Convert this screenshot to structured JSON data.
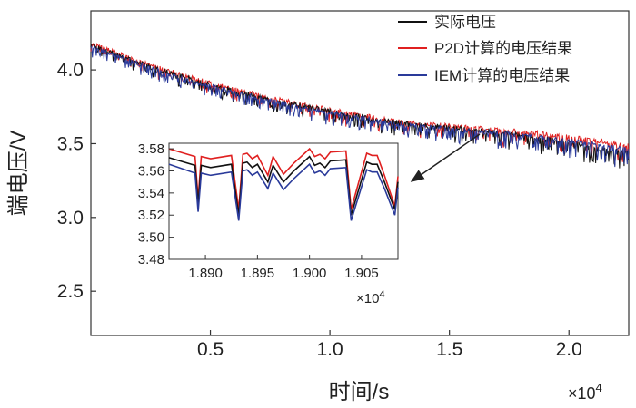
{
  "chart_data": {
    "type": "line",
    "title": "",
    "xlabel": "时间/s",
    "ylabel": "端电压/V",
    "x_multiplier_label": "×10",
    "x_multiplier_exp": "4",
    "xlim": [
      0,
      2.25
    ],
    "ylim": [
      2.2,
      4.4
    ],
    "xticks": [
      0.5,
      1.0,
      1.5,
      2.0
    ],
    "xtick_labels": [
      "0.5",
      "1.0",
      "1.5",
      "2.0"
    ],
    "yticks": [
      2.5,
      3.0,
      3.5,
      4.0
    ],
    "ytick_labels": [
      "2.5",
      "3.0",
      "3.5",
      "4.0"
    ],
    "legend_position": "top-right",
    "series": [
      {
        "name": "实际电压",
        "color": "#111111",
        "x": [
          0.0,
          0.25,
          0.5,
          0.75,
          1.0,
          1.25,
          1.5,
          1.75,
          2.0,
          2.25
        ],
        "y": [
          4.17,
          4.02,
          3.9,
          3.8,
          3.72,
          3.65,
          3.61,
          3.57,
          3.51,
          3.44
        ]
      },
      {
        "name": "P2D计算的电压结果",
        "color": "#e02020",
        "x": [
          0.0,
          0.25,
          0.5,
          0.75,
          1.0,
          1.25,
          1.5,
          1.75,
          2.0,
          2.25
        ],
        "y": [
          4.18,
          4.03,
          3.91,
          3.81,
          3.73,
          3.66,
          3.62,
          3.59,
          3.55,
          3.49
        ]
      },
      {
        "name": "IEM计算的电压结果",
        "color": "#2a3a9a",
        "x": [
          0.0,
          0.25,
          0.5,
          0.75,
          1.0,
          1.25,
          1.5,
          1.75,
          2.0,
          2.25
        ],
        "y": [
          4.16,
          4.01,
          3.89,
          3.79,
          3.71,
          3.64,
          3.6,
          3.57,
          3.52,
          3.46
        ]
      }
    ],
    "inset": {
      "xlim": [
        1.8865,
        1.9085
      ],
      "ylim": [
        3.48,
        3.585
      ],
      "xticks": [
        1.89,
        1.895,
        1.9,
        1.905
      ],
      "xtick_labels": [
        "1.890",
        "1.895",
        "1.900",
        "1.905"
      ],
      "yticks": [
        3.48,
        3.5,
        3.52,
        3.54,
        3.56,
        3.58
      ],
      "ytick_labels": [
        "3.48",
        "3.50",
        "3.52",
        "3.54",
        "3.56",
        "3.58"
      ],
      "x_multiplier_label": "×10",
      "x_multiplier_exp": "4",
      "series": [
        {
          "name": "实际电压",
          "color": "#111111",
          "x": [
            1.8865,
            1.889,
            1.8893,
            1.8896,
            1.8905,
            1.8925,
            1.8932,
            1.8936,
            1.894,
            1.8945,
            1.895,
            1.896,
            1.8965,
            1.8975,
            1.8985,
            1.9,
            1.9005,
            1.901,
            1.9015,
            1.902,
            1.9035,
            1.904,
            1.9055,
            1.906,
            1.9065,
            1.9072,
            1.9082,
            1.9085
          ],
          "y": [
            3.572,
            3.565,
            3.53,
            3.565,
            3.563,
            3.566,
            3.52,
            3.567,
            3.568,
            3.563,
            3.566,
            3.55,
            3.565,
            3.55,
            3.56,
            3.573,
            3.565,
            3.567,
            3.563,
            3.569,
            3.57,
            3.52,
            3.568,
            3.566,
            3.566,
            3.55,
            3.525,
            3.55
          ]
        },
        {
          "name": "P2D计算的电压结果",
          "color": "#e02020",
          "x": [
            1.8865,
            1.889,
            1.8893,
            1.8896,
            1.8905,
            1.8925,
            1.8932,
            1.8936,
            1.894,
            1.8945,
            1.895,
            1.896,
            1.8965,
            1.8975,
            1.8985,
            1.9,
            1.9005,
            1.901,
            1.9015,
            1.902,
            1.9035,
            1.904,
            1.9055,
            1.906,
            1.9065,
            1.9072,
            1.9082,
            1.9085
          ],
          "y": [
            3.58,
            3.573,
            3.535,
            3.573,
            3.571,
            3.574,
            3.525,
            3.575,
            3.576,
            3.571,
            3.574,
            3.556,
            3.573,
            3.557,
            3.567,
            3.58,
            3.573,
            3.575,
            3.571,
            3.577,
            3.578,
            3.525,
            3.576,
            3.574,
            3.574,
            3.556,
            3.528,
            3.555
          ]
        },
        {
          "name": "IEM计算的电压结果",
          "color": "#2a3a9a",
          "x": [
            1.8865,
            1.889,
            1.8893,
            1.8896,
            1.8905,
            1.8925,
            1.8932,
            1.8936,
            1.894,
            1.8945,
            1.895,
            1.896,
            1.8965,
            1.8975,
            1.8985,
            1.9,
            1.9005,
            1.901,
            1.9015,
            1.902,
            1.9035,
            1.904,
            1.9055,
            1.906,
            1.9065,
            1.9072,
            1.9082,
            1.9085
          ],
          "y": [
            3.566,
            3.558,
            3.523,
            3.558,
            3.556,
            3.559,
            3.515,
            3.56,
            3.561,
            3.556,
            3.559,
            3.544,
            3.558,
            3.543,
            3.553,
            3.566,
            3.558,
            3.56,
            3.556,
            3.562,
            3.563,
            3.515,
            3.561,
            3.559,
            3.559,
            3.544,
            3.52,
            3.545
          ]
        }
      ]
    }
  }
}
